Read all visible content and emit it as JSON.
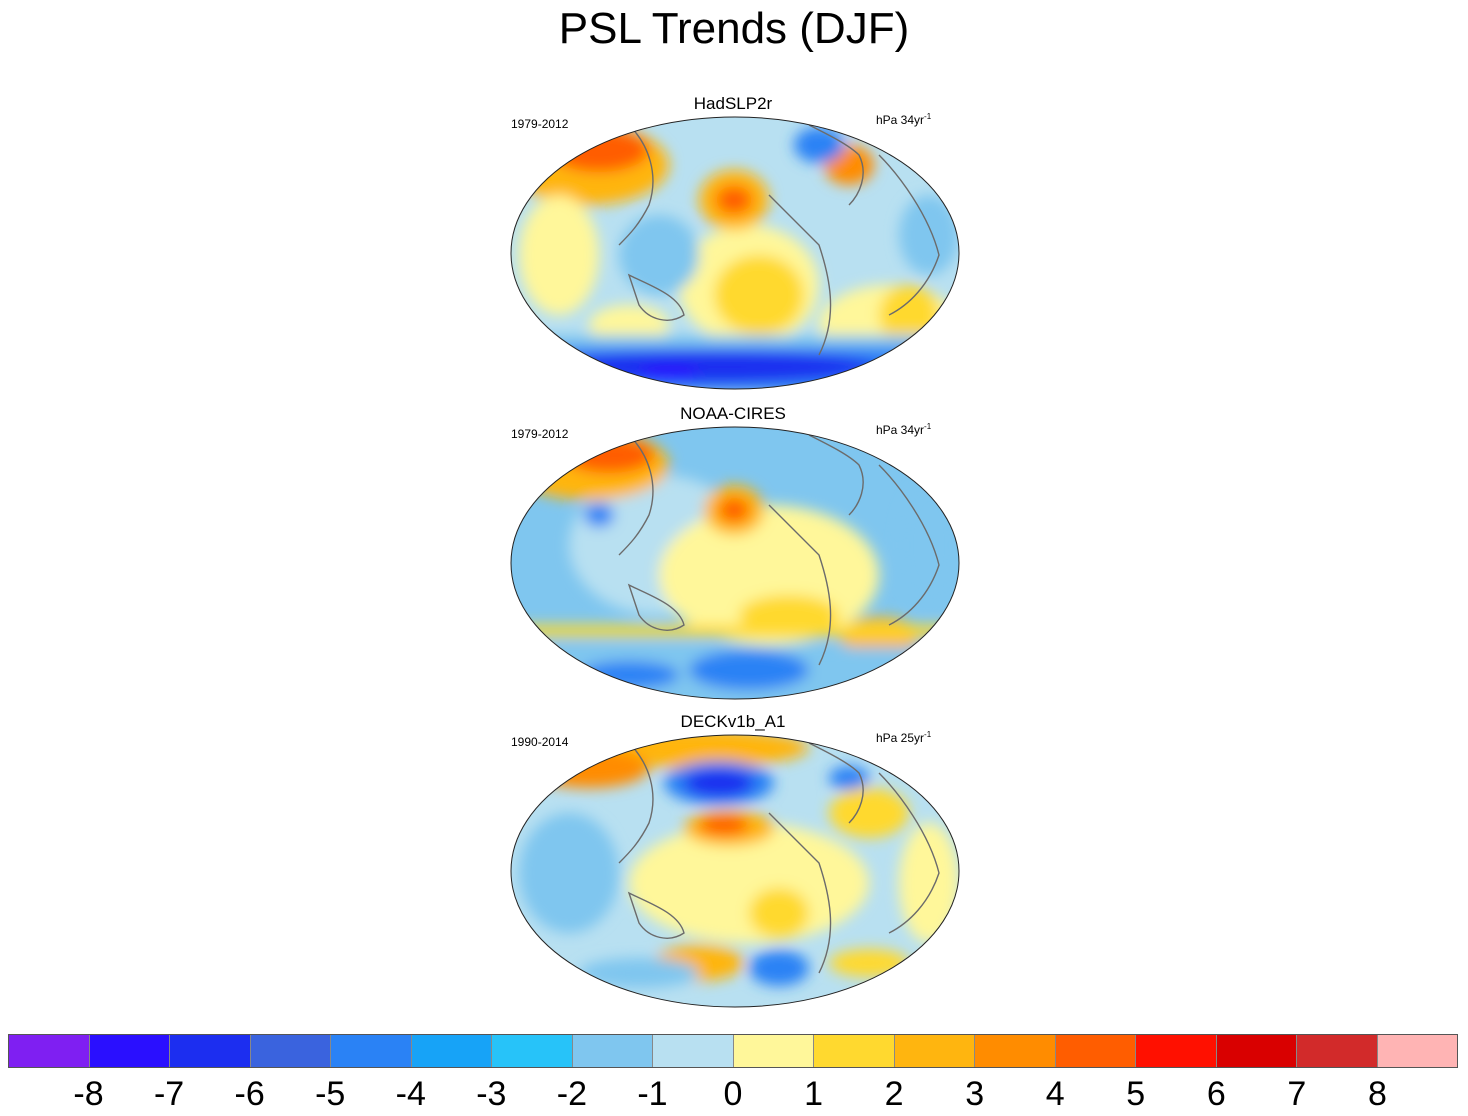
{
  "title": "PSL Trends (DJF)",
  "panels": [
    {
      "name": "HadSLP2r",
      "period": "1979-2012",
      "units_base": "hPa 34yr",
      "units_exp": "-1"
    },
    {
      "name": "NOAA-CIRES",
      "period": "1979-2012",
      "units_base": "hPa 34yr",
      "units_exp": "-1"
    },
    {
      "name": "DECKv1b_A1",
      "period": "1990-2014",
      "units_base": "hPa 25yr",
      "units_exp": "-1"
    }
  ],
  "colorbar": {
    "colors": [
      "#7f1ff2",
      "#2a0fff",
      "#1c2ef0",
      "#3a63de",
      "#2a82f5",
      "#17a3f7",
      "#27c3f9",
      "#7fc6ef",
      "#b8e0f1",
      "#fff79a",
      "#ffd92f",
      "#ffb50f",
      "#ff8c00",
      "#ff5d00",
      "#ff1000",
      "#d90000",
      "#d22a2a",
      "#ffb4b4"
    ],
    "tick_labels": [
      "-8",
      "-7",
      "-6",
      "-5",
      "-4",
      "-3",
      "-2",
      "-1",
      "0",
      "1",
      "2",
      "3",
      "4",
      "5",
      "6",
      "7",
      "8"
    ]
  }
}
